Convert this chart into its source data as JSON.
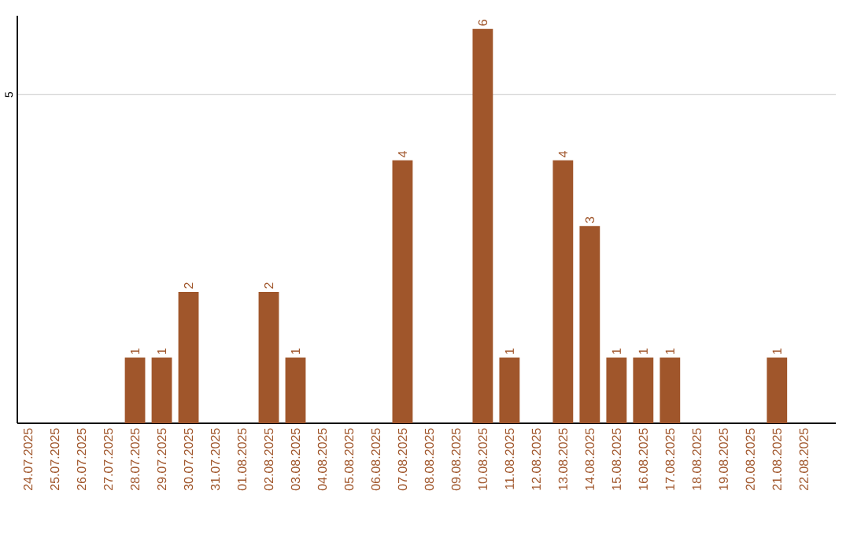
{
  "chart_data": {
    "type": "bar",
    "categories": [
      "24.07.2025",
      "25.07.2025",
      "26.07.2025",
      "27.07.2025",
      "28.07.2025",
      "29.07.2025",
      "30.07.2025",
      "31.07.2025",
      "01.08.2025",
      "02.08.2025",
      "03.08.2025",
      "04.08.2025",
      "05.08.2025",
      "06.08.2025",
      "07.08.2025",
      "08.08.2025",
      "09.08.2025",
      "10.08.2025",
      "11.08.2025",
      "12.08.2025",
      "13.08.2025",
      "14.08.2025",
      "15.08.2025",
      "16.08.2025",
      "17.08.2025",
      "18.08.2025",
      "19.08.2025",
      "20.08.2025",
      "21.08.2025",
      "22.08.2025"
    ],
    "values": [
      0,
      0,
      0,
      0,
      1,
      1,
      2,
      0,
      0,
      2,
      1,
      0,
      0,
      0,
      4,
      0,
      0,
      6,
      1,
      0,
      4,
      3,
      1,
      1,
      1,
      0,
      0,
      0,
      1,
      0
    ],
    "value_labels": [
      null,
      null,
      null,
      null,
      "1",
      "1",
      "2",
      null,
      null,
      "2",
      "1",
      null,
      null,
      null,
      "4",
      null,
      null,
      "6",
      "1",
      null,
      "4",
      "3",
      "1",
      "1",
      "1",
      null,
      null,
      null,
      "1",
      null
    ],
    "color": "#a0562b",
    "ylim": [
      0,
      6.2
    ],
    "yticks": [
      5
    ],
    "grid": "y"
  }
}
